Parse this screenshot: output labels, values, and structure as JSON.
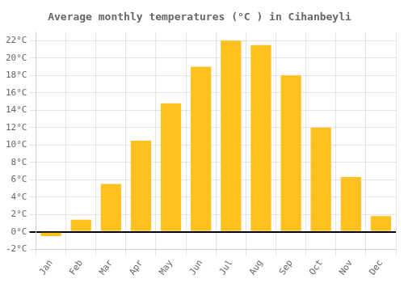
{
  "chart_data": {
    "type": "bar",
    "title": "Average monthly temperatures (°C ) in Cihanbeyli",
    "categories": [
      "Jan",
      "Feb",
      "Mar",
      "Apr",
      "May",
      "Jun",
      "Jul",
      "Aug",
      "Sep",
      "Oct",
      "Nov",
      "Dec"
    ],
    "values": [
      -0.5,
      1.4,
      5.5,
      10.5,
      14.8,
      19.0,
      22.0,
      21.5,
      18.0,
      12.0,
      6.3,
      1.8
    ],
    "color": "#FFC020",
    "ylim": [
      -2,
      23
    ],
    "yticks": [
      {
        "value": -2,
        "label": "-2°C"
      },
      {
        "value": 0,
        "label": "0°C"
      },
      {
        "value": 2,
        "label": "2°C"
      },
      {
        "value": 4,
        "label": "4°C"
      },
      {
        "value": 6,
        "label": "6°C"
      },
      {
        "value": 8,
        "label": "8°C"
      },
      {
        "value": 10,
        "label": "10°C"
      },
      {
        "value": 12,
        "label": "12°C"
      },
      {
        "value": 14,
        "label": "14°C"
      },
      {
        "value": 16,
        "label": "16°C"
      },
      {
        "value": 18,
        "label": "18°C"
      },
      {
        "value": 20,
        "label": "20°C"
      },
      {
        "value": 22,
        "label": "22°C"
      }
    ],
    "grid": true
  }
}
